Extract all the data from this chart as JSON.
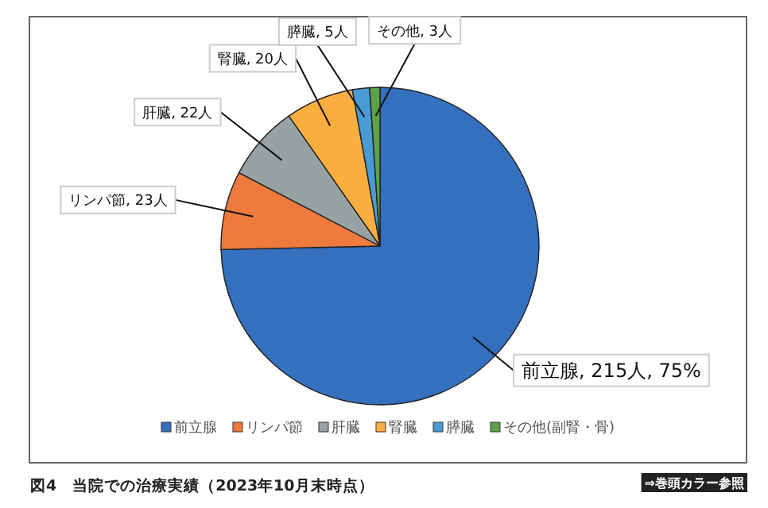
{
  "chart_data": {
    "type": "pie",
    "title": "図4　当院での治療実績（2023年10月末時点）",
    "categories": [
      "前立腺",
      "リンパ節",
      "肝臓",
      "腎臓",
      "膵臓",
      "その他(副腎・骨)"
    ],
    "values": [
      215,
      23,
      22,
      20,
      5,
      3
    ],
    "colors": [
      "#3470be",
      "#ee7a3e",
      "#97a3a3",
      "#fbae40",
      "#4a9ad4",
      "#5ea14a"
    ],
    "value_labels": [
      "前立腺, 215人, 75%",
      "リンパ節, 23人",
      "肝臓, 22人",
      "腎臓, 20人",
      "膵臓, 5人",
      "その他, 3人"
    ],
    "legend": "bottom",
    "annotations": [
      "⇒巻頭カラー参照"
    ]
  }
}
